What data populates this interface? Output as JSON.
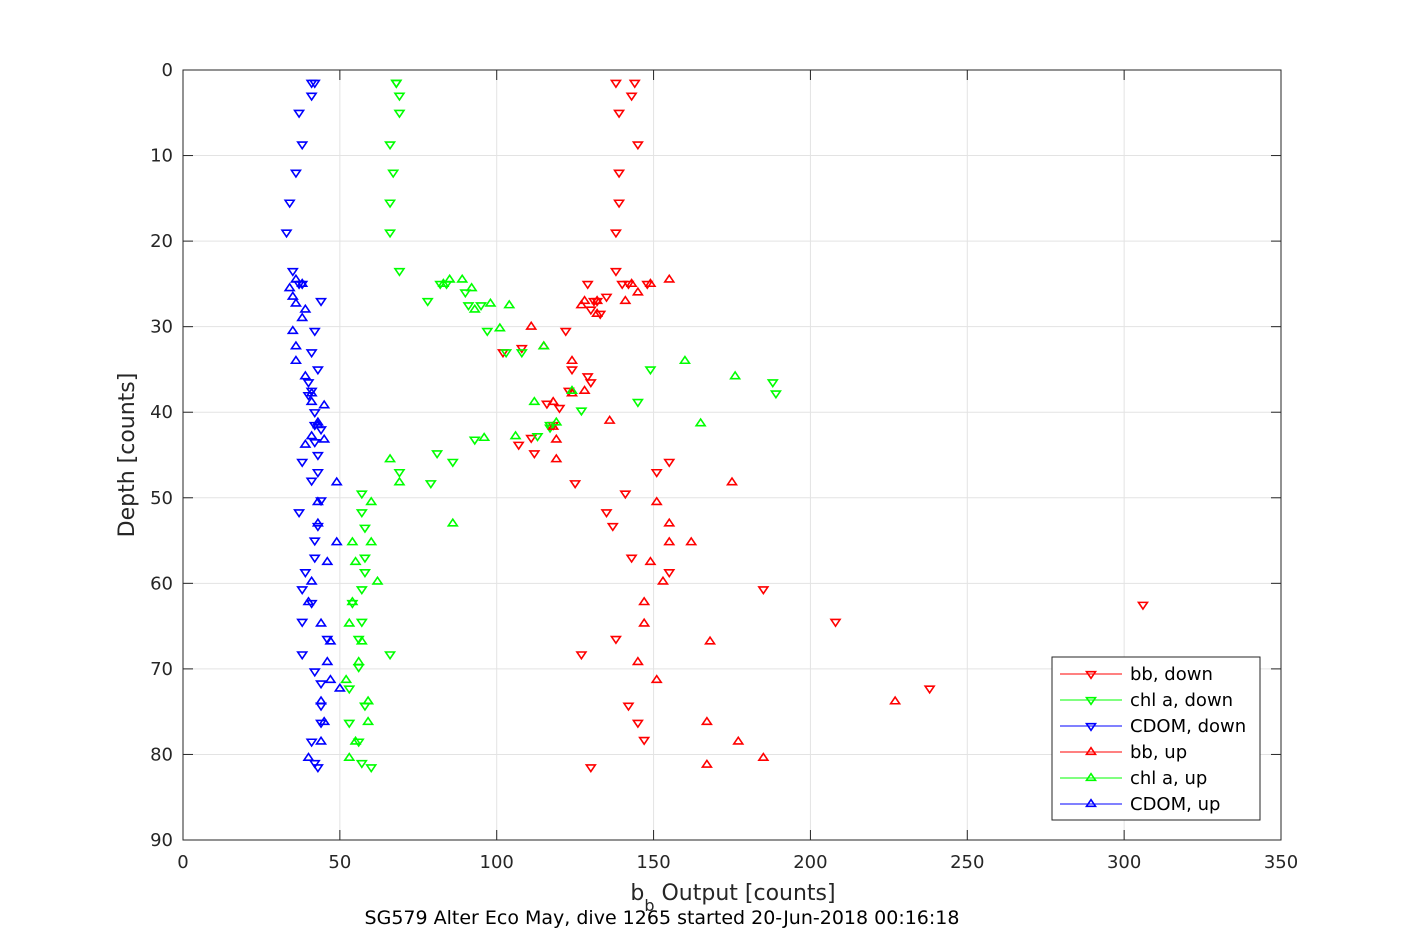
{
  "chart_data": {
    "type": "scatter",
    "xlabel_main": "b",
    "xlabel_sub": "b",
    "xlabel_rest": " Output [counts]",
    "ylabel": "Depth [counts]",
    "caption": "SG579 Alter Eco May, dive 1265 started 20-Jun-2018 00:16:18",
    "xlim": [
      0,
      350
    ],
    "ylim": [
      0,
      90
    ],
    "y_reversed": true,
    "grid": true,
    "legend_position": "bottom-right",
    "xticks": [
      "0",
      "50",
      "100",
      "150",
      "200",
      "250",
      "300",
      "350"
    ],
    "yticks": [
      "0",
      "10",
      "20",
      "30",
      "40",
      "50",
      "60",
      "70",
      "80",
      "90"
    ],
    "series": [
      {
        "name": "bb, down",
        "color": "#ff0000",
        "marker": "triangle-down",
        "points": [
          [
            144,
            1.5
          ],
          [
            138,
            1.5
          ],
          [
            143,
            3
          ],
          [
            139,
            5
          ],
          [
            145,
            8.7
          ],
          [
            139,
            12
          ],
          [
            139,
            15.5
          ],
          [
            138,
            19
          ],
          [
            138,
            23.5
          ],
          [
            140,
            25
          ],
          [
            142,
            25
          ],
          [
            148,
            25
          ],
          [
            129,
            25
          ],
          [
            132,
            27
          ],
          [
            135,
            26.5
          ],
          [
            130,
            28
          ],
          [
            131,
            27
          ],
          [
            133,
            28.5
          ],
          [
            122,
            30.5
          ],
          [
            102,
            33
          ],
          [
            108,
            32.5
          ],
          [
            130,
            36.5
          ],
          [
            129,
            35.8
          ],
          [
            124,
            35
          ],
          [
            123,
            37.5
          ],
          [
            120,
            39.5
          ],
          [
            116,
            39
          ],
          [
            118,
            41.5
          ],
          [
            111,
            43
          ],
          [
            107,
            43.8
          ],
          [
            112,
            44.8
          ],
          [
            151,
            47
          ],
          [
            155,
            45.8
          ],
          [
            125,
            48.3
          ],
          [
            141,
            49.5
          ],
          [
            135,
            51.7
          ],
          [
            137,
            53.3
          ],
          [
            143,
            57
          ],
          [
            155,
            58.7
          ],
          [
            185,
            60.7
          ],
          [
            306,
            62.5
          ],
          [
            208,
            64.5
          ],
          [
            138,
            66.5
          ],
          [
            127,
            68.3
          ],
          [
            238,
            72.3
          ],
          [
            142,
            74.3
          ],
          [
            145,
            76.3
          ],
          [
            147,
            78.3
          ],
          [
            130,
            81.5
          ]
        ]
      },
      {
        "name": "chl a, down",
        "color": "#00ff00",
        "marker": "triangle-down",
        "points": [
          [
            68,
            1.5
          ],
          [
            68,
            1.5
          ],
          [
            69,
            3
          ],
          [
            69,
            5
          ],
          [
            66,
            8.7
          ],
          [
            67,
            12
          ],
          [
            66,
            15.5
          ],
          [
            66,
            19
          ],
          [
            69,
            23.5
          ],
          [
            84,
            25
          ],
          [
            82,
            25
          ],
          [
            90,
            26
          ],
          [
            91,
            27.5
          ],
          [
            78,
            27
          ],
          [
            95,
            27.5
          ],
          [
            97,
            30.5
          ],
          [
            103,
            33
          ],
          [
            108,
            33
          ],
          [
            149,
            35
          ],
          [
            188,
            36.5
          ],
          [
            189,
            37.8
          ],
          [
            145,
            38.8
          ],
          [
            127,
            39.8
          ],
          [
            117,
            41.5
          ],
          [
            117,
            41.8
          ],
          [
            113,
            42.8
          ],
          [
            93,
            43.2
          ],
          [
            81,
            44.8
          ],
          [
            86,
            45.8
          ],
          [
            69,
            47
          ],
          [
            79,
            48.3
          ],
          [
            57,
            49.5
          ],
          [
            57,
            51.7
          ],
          [
            58,
            53.5
          ],
          [
            58,
            57
          ],
          [
            58,
            58.7
          ],
          [
            57,
            60.7
          ],
          [
            54,
            62.3
          ],
          [
            57,
            64.5
          ],
          [
            56,
            66.5
          ],
          [
            66,
            68.3
          ],
          [
            56,
            69.8
          ],
          [
            53,
            72.3
          ],
          [
            58,
            74.3
          ],
          [
            53,
            76.3
          ],
          [
            56,
            78.5
          ],
          [
            57,
            81
          ],
          [
            60,
            81.5
          ]
        ]
      },
      {
        "name": "CDOM, down",
        "color": "#0000ff",
        "marker": "triangle-down",
        "points": [
          [
            42,
            1.5
          ],
          [
            41,
            1.5
          ],
          [
            41,
            3
          ],
          [
            37,
            5
          ],
          [
            38,
            8.7
          ],
          [
            36,
            12
          ],
          [
            34,
            15.5
          ],
          [
            33,
            19
          ],
          [
            35,
            23.5
          ],
          [
            37,
            25
          ],
          [
            38,
            25
          ],
          [
            44,
            27
          ],
          [
            42,
            30.5
          ],
          [
            41,
            33
          ],
          [
            43,
            35
          ],
          [
            40,
            36.5
          ],
          [
            41,
            37.5
          ],
          [
            40,
            38
          ],
          [
            42,
            40
          ],
          [
            42,
            41.5
          ],
          [
            44,
            42
          ],
          [
            42,
            43.5
          ],
          [
            43,
            45
          ],
          [
            38,
            45.8
          ],
          [
            43,
            47
          ],
          [
            41,
            48
          ],
          [
            44,
            50.3
          ],
          [
            37,
            51.7
          ],
          [
            43,
            53.3
          ],
          [
            42,
            55
          ],
          [
            42,
            57
          ],
          [
            39,
            58.7
          ],
          [
            38,
            60.7
          ],
          [
            41,
            62.3
          ],
          [
            38,
            64.5
          ],
          [
            46,
            66.5
          ],
          [
            38,
            68.3
          ],
          [
            42,
            70.3
          ],
          [
            44,
            71.7
          ],
          [
            44,
            74.3
          ],
          [
            44,
            76.3
          ],
          [
            41,
            78.5
          ],
          [
            42,
            81
          ],
          [
            43,
            81.5
          ]
        ]
      },
      {
        "name": "bb, up",
        "color": "#ff0000",
        "marker": "triangle-up",
        "points": [
          [
            155,
            24.5
          ],
          [
            149,
            25
          ],
          [
            143,
            25
          ],
          [
            128,
            27
          ],
          [
            132,
            27
          ],
          [
            127,
            27.5
          ],
          [
            145,
            26
          ],
          [
            141,
            27
          ],
          [
            132,
            28.5
          ],
          [
            111,
            30
          ],
          [
            115,
            32.3
          ],
          [
            124,
            34
          ],
          [
            124,
            37.8
          ],
          [
            128,
            37.5
          ],
          [
            118,
            38.8
          ],
          [
            136,
            41
          ],
          [
            118,
            41.7
          ],
          [
            119,
            43.2
          ],
          [
            119,
            45.5
          ],
          [
            175,
            48.2
          ],
          [
            151,
            50.5
          ],
          [
            155,
            53
          ],
          [
            155,
            55.2
          ],
          [
            162,
            55.2
          ],
          [
            149,
            57.5
          ],
          [
            153,
            59.8
          ],
          [
            147,
            62.2
          ],
          [
            147,
            64.7
          ],
          [
            168,
            66.8
          ],
          [
            145,
            69.2
          ],
          [
            151,
            71.3
          ],
          [
            227,
            73.8
          ],
          [
            167,
            76.2
          ],
          [
            177,
            78.5
          ],
          [
            185,
            80.4
          ],
          [
            167,
            81.2
          ]
        ]
      },
      {
        "name": "chl a, up",
        "color": "#00ff00",
        "marker": "triangle-up",
        "points": [
          [
            85,
            24.5
          ],
          [
            83,
            25
          ],
          [
            89,
            24.5
          ],
          [
            92,
            25.5
          ],
          [
            98,
            27.3
          ],
          [
            93,
            28
          ],
          [
            104,
            27.5
          ],
          [
            101,
            30.2
          ],
          [
            115,
            32.3
          ],
          [
            160,
            34
          ],
          [
            176,
            35.8
          ],
          [
            124,
            37.5
          ],
          [
            112,
            38.8
          ],
          [
            119,
            41.2
          ],
          [
            165,
            41.3
          ],
          [
            106,
            42.8
          ],
          [
            96,
            43
          ],
          [
            66,
            45.5
          ],
          [
            69,
            48.2
          ],
          [
            60,
            50.5
          ],
          [
            86,
            53
          ],
          [
            60,
            55.2
          ],
          [
            54,
            55.2
          ],
          [
            55,
            57.5
          ],
          [
            62,
            59.8
          ],
          [
            54,
            62.2
          ],
          [
            53,
            64.7
          ],
          [
            57,
            66.8
          ],
          [
            56,
            69.2
          ],
          [
            52,
            71.3
          ],
          [
            59,
            73.8
          ],
          [
            59,
            76.2
          ],
          [
            55,
            78.5
          ],
          [
            53,
            80.4
          ]
        ]
      },
      {
        "name": "CDOM, up",
        "color": "#0000ff",
        "marker": "triangle-up",
        "points": [
          [
            36,
            24.5
          ],
          [
            38,
            25
          ],
          [
            34,
            25.5
          ],
          [
            35,
            26.5
          ],
          [
            36,
            27.3
          ],
          [
            39,
            28
          ],
          [
            38,
            29
          ],
          [
            35,
            30.5
          ],
          [
            36,
            32.3
          ],
          [
            36,
            34
          ],
          [
            39,
            35.8
          ],
          [
            41,
            37.8
          ],
          [
            41,
            38.8
          ],
          [
            45,
            39.2
          ],
          [
            43,
            41.2
          ],
          [
            43,
            41.5
          ],
          [
            41,
            42.8
          ],
          [
            45,
            43.2
          ],
          [
            39,
            43.8
          ],
          [
            49,
            48.2
          ],
          [
            43,
            50.5
          ],
          [
            43,
            53
          ],
          [
            49,
            55.2
          ],
          [
            46,
            57.5
          ],
          [
            41,
            59.8
          ],
          [
            40,
            62.2
          ],
          [
            44,
            64.7
          ],
          [
            47,
            66.8
          ],
          [
            46,
            69.2
          ],
          [
            47,
            71.3
          ],
          [
            50,
            72.3
          ],
          [
            44,
            73.8
          ],
          [
            45,
            76.2
          ],
          [
            44,
            78.5
          ],
          [
            40,
            80.4
          ]
        ]
      }
    ]
  }
}
